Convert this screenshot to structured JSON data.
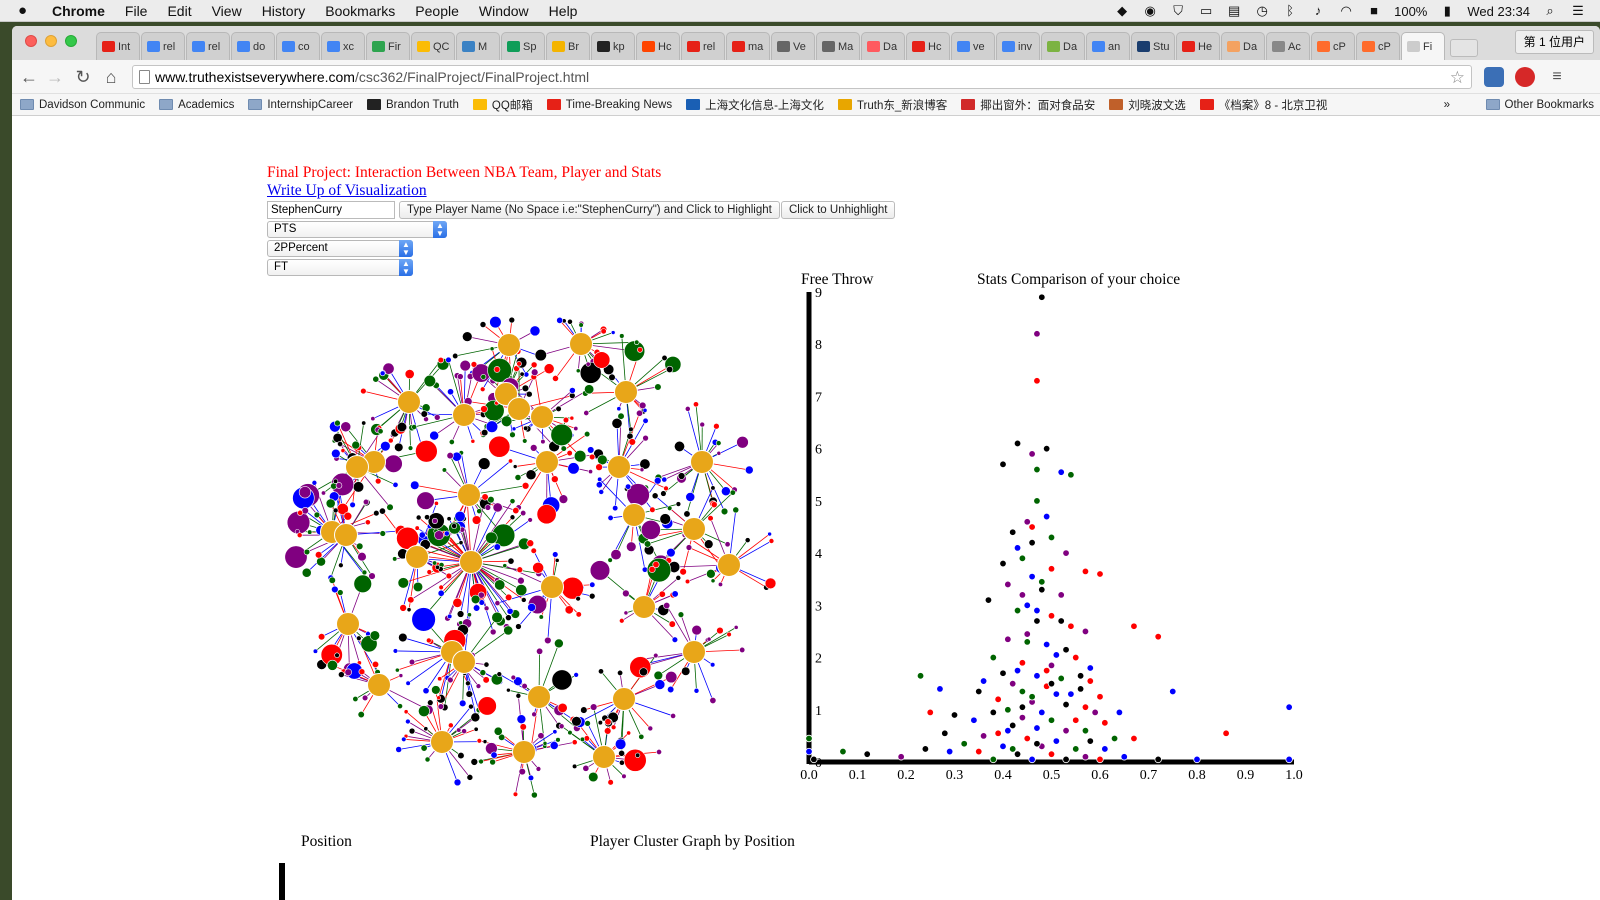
{
  "menubar": {
    "apple": "",
    "items": [
      "Chrome",
      "File",
      "Edit",
      "View",
      "History",
      "Bookmarks",
      "People",
      "Window",
      "Help"
    ],
    "battery": "100%",
    "clock": "Wed 23:34"
  },
  "browser": {
    "profile": "第 1 位用户",
    "tabs": [
      {
        "label": "Int",
        "fav": "#e62117"
      },
      {
        "label": "rel",
        "fav": "#4285f4"
      },
      {
        "label": "rel",
        "fav": "#4285f4"
      },
      {
        "label": "do",
        "fav": "#4285f4"
      },
      {
        "label": "co",
        "fav": "#4285f4"
      },
      {
        "label": "xc",
        "fav": "#4285f4"
      },
      {
        "label": "Fir",
        "fav": "#2ea44f"
      },
      {
        "label": "QC",
        "fav": "#fbbc05"
      },
      {
        "label": "M",
        "fav": "#3b82c4"
      },
      {
        "label": "Sp",
        "fav": "#0f9d58"
      },
      {
        "label": "Br",
        "fav": "#f4b400"
      },
      {
        "label": "kp",
        "fav": "#222222"
      },
      {
        "label": "Hc",
        "fav": "#ff4500"
      },
      {
        "label": "rel",
        "fav": "#e62117"
      },
      {
        "label": "ma",
        "fav": "#e62117"
      },
      {
        "label": "Ve",
        "fav": "#666666"
      },
      {
        "label": "Ma",
        "fav": "#666666"
      },
      {
        "label": "Da",
        "fav": "#ff5a5f"
      },
      {
        "label": "Hc",
        "fav": "#e62117"
      },
      {
        "label": "ve",
        "fav": "#4285f4"
      },
      {
        "label": "inv",
        "fav": "#4285f4"
      },
      {
        "label": "Da",
        "fav": "#7cb342"
      },
      {
        "label": "an",
        "fav": "#4285f4"
      },
      {
        "label": "Stu",
        "fav": "#1a3d6e"
      },
      {
        "label": "He",
        "fav": "#e62117"
      },
      {
        "label": "Da",
        "fav": "#f4a261"
      },
      {
        "label": "Ac",
        "fav": "#888888"
      },
      {
        "label": "cP",
        "fav": "#ff6c2c"
      },
      {
        "label": "cP",
        "fav": "#ff6c2c"
      },
      {
        "label": "Fi",
        "fav": "#cccccc"
      }
    ],
    "url_domain": "www.truthexistseverywhere.com",
    "url_path": "/csc362/FinalProject/FinalProject.html",
    "bookmarks": [
      {
        "label": "Davidson Communic",
        "folder": true,
        "color": ""
      },
      {
        "label": "Academics",
        "folder": true,
        "color": ""
      },
      {
        "label": "InternshipCareer",
        "folder": true,
        "color": ""
      },
      {
        "label": "Brandon Truth",
        "folder": false,
        "color": "#222222"
      },
      {
        "label": "QQ邮箱",
        "folder": false,
        "color": "#fbbc05"
      },
      {
        "label": "Time-Breaking News",
        "folder": false,
        "color": "#e62117"
      },
      {
        "label": "上海文化信息-上海文化",
        "folder": false,
        "color": "#1a5fb4"
      },
      {
        "label": "Truth东_新浪博客",
        "folder": false,
        "color": "#e8a600"
      },
      {
        "label": "揶出窗外：面对食品安",
        "folder": false,
        "color": "#d12a2a"
      },
      {
        "label": "刘晓波文选",
        "folder": false,
        "color": "#c0602a"
      },
      {
        "label": "《档案》8 - 北京卫视",
        "folder": false,
        "color": "#e62117"
      }
    ],
    "more": "»",
    "other_bookmarks": "Other Bookmarks"
  },
  "page": {
    "title": "Final Project: Interaction Between NBA Team, Player and Stats",
    "writeup_link": "Write Up of Visualization",
    "player_input_value": "StephenCurry",
    "highlight_button": "Type Player Name (No Space i.e:\"StephenCurry\") and Click to Highlight",
    "unhighlight_button": "Click to Unhighlight",
    "stat_select": "PTS",
    "x_select": "2PPercent",
    "y_select": "FT",
    "scatter_ylabel": "Free Throw",
    "scatter_title": "Stats Comparison of your choice",
    "position_label": "Position",
    "position_title": "Player Cluster Graph by Position"
  },
  "colors": {
    "hub": "#e8a619",
    "node_palette": [
      "#800080",
      "#0000ff",
      "#ff0000",
      "#006400",
      "#000000"
    ],
    "link_palette": [
      "#800080",
      "#0000ff",
      "#ff0000",
      "#006400"
    ]
  },
  "chart_data": {
    "type": "scatter",
    "title": "Stats Comparison of your choice",
    "ylabel": "Free Throw",
    "xlabel": "",
    "xlim": [
      0.0,
      1.0
    ],
    "ylim": [
      0,
      9
    ],
    "x_ticks": [
      "0.0",
      "0.1",
      "0.2",
      "0.3",
      "0.4",
      "0.5",
      "0.6",
      "0.7",
      "0.8",
      "0.9",
      "1.0"
    ],
    "y_ticks": [
      "0",
      "1",
      "2",
      "3",
      "4",
      "5",
      "6",
      "7",
      "8",
      "9"
    ],
    "series_colors": [
      "#800080",
      "#0000ff",
      "#ff0000",
      "#006400",
      "#000000"
    ],
    "points": [
      [
        0.48,
        8.9,
        4
      ],
      [
        0.47,
        8.2,
        0
      ],
      [
        0.47,
        7.3,
        2
      ],
      [
        0.43,
        6.1,
        4
      ],
      [
        0.49,
        6.0,
        4
      ],
      [
        0.46,
        5.9,
        0
      ],
      [
        0.4,
        5.7,
        4
      ],
      [
        0.47,
        5.6,
        3
      ],
      [
        0.52,
        5.55,
        1
      ],
      [
        0.54,
        5.5,
        3
      ],
      [
        0.47,
        5.0,
        3
      ],
      [
        0.49,
        4.7,
        1
      ],
      [
        0.45,
        4.6,
        0
      ],
      [
        0.46,
        4.5,
        2
      ],
      [
        0.42,
        4.4,
        4
      ],
      [
        0.5,
        4.3,
        3
      ],
      [
        0.43,
        4.1,
        1
      ],
      [
        0.53,
        4.0,
        0
      ],
      [
        0.44,
        3.9,
        3
      ],
      [
        0.4,
        3.8,
        4
      ],
      [
        0.5,
        3.7,
        2
      ],
      [
        0.57,
        3.65,
        2
      ],
      [
        0.6,
        3.6,
        2
      ],
      [
        0.46,
        3.55,
        1
      ],
      [
        0.41,
        3.4,
        0
      ],
      [
        0.48,
        3.3,
        4
      ],
      [
        0.52,
        3.2,
        0
      ],
      [
        0.37,
        3.1,
        4
      ],
      [
        0.45,
        3.0,
        1
      ],
      [
        0.43,
        2.9,
        3
      ],
      [
        0.5,
        2.8,
        2
      ],
      [
        0.47,
        2.7,
        4
      ],
      [
        0.54,
        2.6,
        2
      ],
      [
        0.57,
        2.5,
        0
      ],
      [
        0.67,
        2.6,
        2
      ],
      [
        0.72,
        2.4,
        2
      ],
      [
        0.41,
        2.35,
        0
      ],
      [
        0.45,
        2.3,
        3
      ],
      [
        0.49,
        2.25,
        1
      ],
      [
        0.53,
        2.15,
        4
      ],
      [
        0.38,
        2.0,
        3
      ],
      [
        0.55,
        2.0,
        2
      ],
      [
        0.44,
        1.9,
        2
      ],
      [
        0.5,
        1.85,
        0
      ],
      [
        0.58,
        1.8,
        1
      ],
      [
        0.4,
        1.7,
        4
      ],
      [
        0.47,
        1.65,
        1
      ],
      [
        0.52,
        1.6,
        3
      ],
      [
        0.23,
        1.65,
        3
      ],
      [
        0.36,
        1.55,
        1
      ],
      [
        0.58,
        1.55,
        2
      ],
      [
        0.42,
        1.5,
        0
      ],
      [
        0.49,
        1.45,
        2
      ],
      [
        0.56,
        1.4,
        4
      ],
      [
        0.44,
        1.35,
        3
      ],
      [
        0.51,
        1.3,
        1
      ],
      [
        0.27,
        1.4,
        1
      ],
      [
        0.35,
        1.35,
        4
      ],
      [
        0.6,
        1.25,
        2
      ],
      [
        0.75,
        1.35,
        1
      ],
      [
        0.39,
        1.2,
        2
      ],
      [
        0.46,
        1.15,
        0
      ],
      [
        0.53,
        1.1,
        4
      ],
      [
        0.57,
        1.05,
        2
      ],
      [
        0.41,
        1.0,
        3
      ],
      [
        0.48,
        0.95,
        1
      ],
      [
        0.38,
        0.95,
        4
      ],
      [
        0.64,
        0.95,
        1
      ],
      [
        0.99,
        1.05,
        1
      ],
      [
        0.25,
        0.95,
        2
      ],
      [
        0.3,
        0.9,
        4
      ],
      [
        0.44,
        0.85,
        0
      ],
      [
        0.5,
        0.8,
        3
      ],
      [
        0.55,
        0.8,
        2
      ],
      [
        0.34,
        0.8,
        1
      ],
      [
        0.61,
        0.75,
        2
      ],
      [
        0.42,
        0.7,
        4
      ],
      [
        0.47,
        0.65,
        1
      ],
      [
        0.53,
        0.6,
        0
      ],
      [
        0.57,
        0.6,
        3
      ],
      [
        0.86,
        0.55,
        2
      ],
      [
        0.28,
        0.55,
        4
      ],
      [
        0.36,
        0.5,
        0
      ],
      [
        0.45,
        0.45,
        2
      ],
      [
        0.51,
        0.4,
        1
      ],
      [
        0.58,
        0.4,
        4
      ],
      [
        0.63,
        0.45,
        3
      ],
      [
        0.67,
        0.45,
        2
      ],
      [
        0.32,
        0.35,
        3
      ],
      [
        0.4,
        0.3,
        1
      ],
      [
        0.48,
        0.3,
        0
      ],
      [
        0.55,
        0.25,
        3
      ],
      [
        0.61,
        0.25,
        1
      ],
      [
        0.24,
        0.25,
        4
      ],
      [
        0.29,
        0.2,
        1
      ],
      [
        0.35,
        0.2,
        2
      ],
      [
        0.43,
        0.15,
        4
      ],
      [
        0.5,
        0.15,
        2
      ],
      [
        0.57,
        0.1,
        0
      ],
      [
        0.65,
        0.1,
        1
      ],
      [
        0.12,
        0.15,
        4
      ],
      [
        0.07,
        0.2,
        3
      ],
      [
        0.0,
        0.45,
        3
      ],
      [
        0.0,
        0.2,
        1
      ],
      [
        0.19,
        0.1,
        0
      ],
      [
        0.38,
        0.05,
        3
      ],
      [
        0.46,
        0.05,
        1
      ],
      [
        0.53,
        0.05,
        4
      ],
      [
        0.6,
        0.05,
        2
      ],
      [
        0.72,
        0.05,
        4
      ],
      [
        0.8,
        0.05,
        1
      ],
      [
        0.99,
        0.05,
        1
      ],
      [
        0.01,
        0.05,
        4
      ],
      [
        0.41,
        0.6,
        1
      ],
      [
        0.44,
        1.05,
        4
      ],
      [
        0.46,
        1.25,
        3
      ],
      [
        0.49,
        1.75,
        2
      ],
      [
        0.51,
        2.05,
        1
      ],
      [
        0.45,
        2.45,
        0
      ],
      [
        0.47,
        2.9,
        1
      ],
      [
        0.48,
        3.45,
        3
      ],
      [
        0.46,
        4.2,
        4
      ],
      [
        0.44,
        3.2,
        0
      ],
      [
        0.52,
        2.7,
        4
      ],
      [
        0.5,
        1.5,
        4
      ],
      [
        0.43,
        1.75,
        1
      ],
      [
        0.39,
        0.55,
        2
      ],
      [
        0.54,
        1.3,
        1
      ],
      [
        0.59,
        0.95,
        0
      ],
      [
        0.42,
        0.25,
        3
      ],
      [
        0.47,
        0.35,
        4
      ],
      [
        0.56,
        1.65,
        4
      ]
    ]
  }
}
